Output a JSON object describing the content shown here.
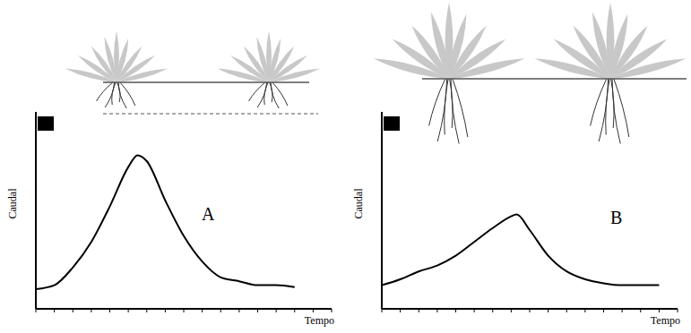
{
  "chart_data": [
    {
      "type": "line",
      "label": "A",
      "x_label": "Tempo",
      "y_label": "Caudal",
      "x": [
        0,
        1,
        2,
        3,
        4,
        5,
        5.5,
        6,
        7,
        8,
        9,
        10,
        11,
        12,
        13,
        14
      ],
      "values": [
        1.0,
        1.2,
        2.1,
        3.4,
        5.2,
        7.2,
        7.8,
        7.5,
        5.5,
        3.7,
        2.4,
        1.6,
        1.4,
        1.2,
        1.2,
        1.1
      ],
      "color": "#000000",
      "xlim": [
        0,
        16
      ],
      "xticks": [
        0,
        1,
        2,
        3,
        4,
        5,
        6,
        7,
        8,
        9,
        10,
        11,
        12,
        13,
        14,
        15,
        16
      ],
      "ylim": [
        0,
        10
      ],
      "tick_labels": false
    },
    {
      "type": "line",
      "label": "B",
      "x_label": "Tempo",
      "y_label": "Caudal",
      "x": [
        0,
        1,
        2,
        3,
        4,
        5,
        6,
        7,
        7.3,
        8,
        9,
        10,
        11,
        12,
        13,
        14,
        15
      ],
      "values": [
        1.2,
        1.5,
        1.9,
        2.2,
        2.7,
        3.4,
        4.1,
        4.7,
        4.8,
        4.0,
        2.7,
        1.9,
        1.5,
        1.3,
        1.2,
        1.2,
        1.2
      ],
      "color": "#000000",
      "xlim": [
        0,
        16
      ],
      "xticks": [
        0,
        1,
        2,
        3,
        4,
        5,
        6,
        7,
        8,
        9,
        10,
        11,
        12,
        13,
        14,
        15,
        16
      ],
      "ylim": [
        0,
        10
      ],
      "tick_labels": false
    }
  ]
}
